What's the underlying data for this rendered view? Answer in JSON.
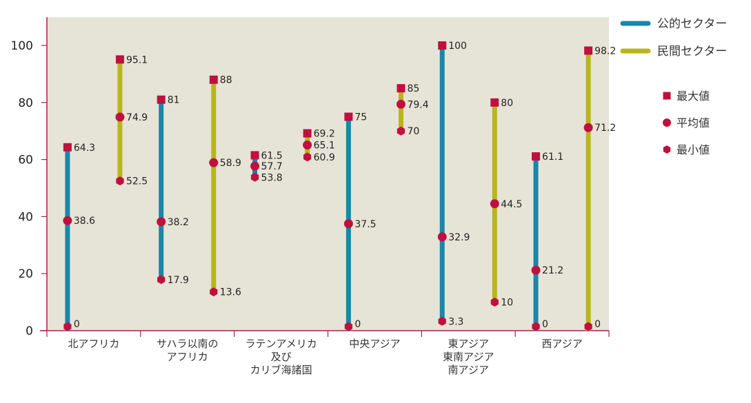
{
  "chart_data": {
    "type": "range-dot",
    "title": "",
    "xlabel": "",
    "ylabel": "",
    "ylim": [
      0,
      110
    ],
    "yticks": [
      0,
      20,
      40,
      60,
      80,
      100
    ],
    "grid": false,
    "legend_position": "right",
    "categories": [
      [
        "北アフリカ"
      ],
      [
        "サハラ以南の",
        "アフリカ"
      ],
      [
        "ラテンアメリカ",
        "及び",
        "カリブ海諸国"
      ],
      [
        "中央アジア"
      ],
      [
        "東アジア",
        "東南アジア",
        "南アジア"
      ],
      [
        "西アジア"
      ]
    ],
    "series": [
      {
        "name": "公的セクター",
        "color": "#1a87a8",
        "max": [
          64.3,
          81,
          61.5,
          75,
          100,
          61.1
        ],
        "mean": [
          38.6,
          38.2,
          57.7,
          37.5,
          32.9,
          21.2
        ],
        "min": [
          0,
          17.9,
          53.8,
          0,
          3.3,
          0
        ]
      },
      {
        "name": "民間セクター",
        "color": "#b8b61a",
        "max": [
          95.1,
          88,
          69.2,
          85,
          80,
          98.2
        ],
        "mean": [
          74.9,
          58.9,
          65.1,
          79.4,
          44.5,
          71.2
        ],
        "min": [
          52.5,
          13.6,
          60.9,
          70,
          10,
          0
        ]
      }
    ],
    "markers": [
      {
        "name": "最大値",
        "shape": "square"
      },
      {
        "name": "平均値",
        "shape": "circle"
      },
      {
        "name": "最小値",
        "shape": "hexagon"
      }
    ],
    "marker_color": "#c0103f",
    "plot_background": "#e6e4d6",
    "axis_color": "#a3224a"
  }
}
